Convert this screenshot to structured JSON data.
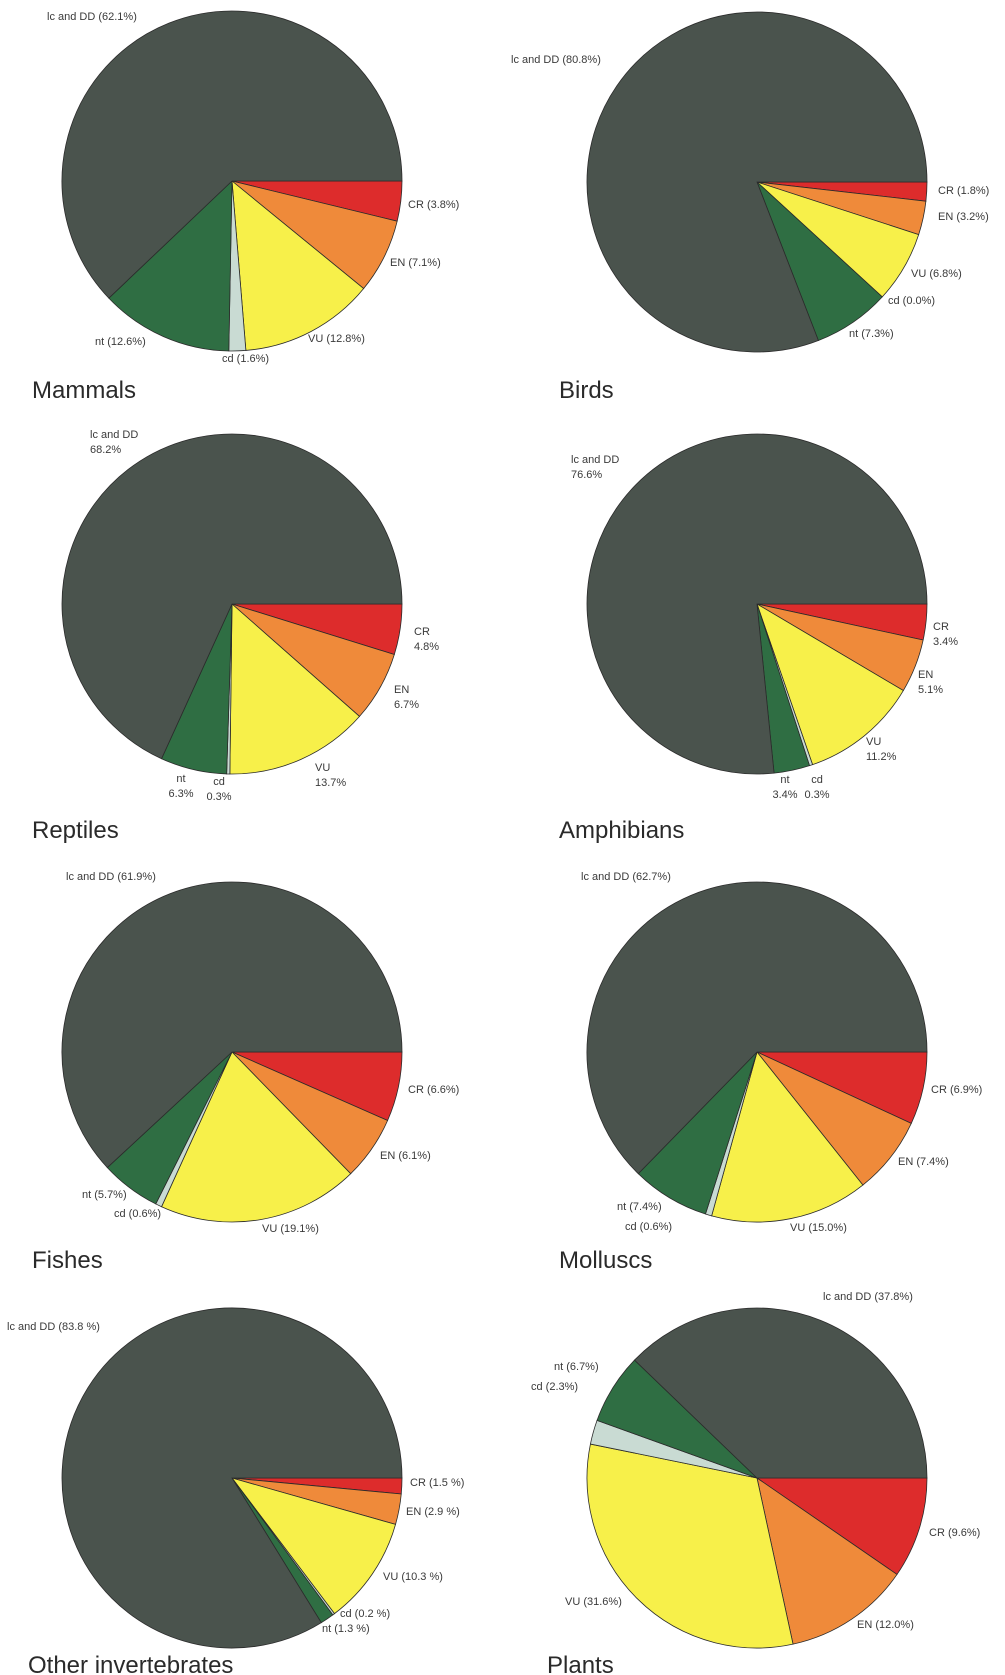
{
  "colors": {
    "lc_and_dd": "#4a534d",
    "cr": "#dd2c2c",
    "en": "#ef8a3a",
    "vu": "#f7f04a",
    "cd": "#c9dbd3",
    "nt": "#2f6e43"
  },
  "chart_data": [
    {
      "type": "pie",
      "title": "Mammals",
      "slices": [
        {
          "category": "CR",
          "value": 3.8,
          "label": "CR (3.8%)"
        },
        {
          "category": "EN",
          "value": 7.1,
          "label": "EN (7.1%)"
        },
        {
          "category": "VU",
          "value": 12.8,
          "label": "VU (12.8%)"
        },
        {
          "category": "cd",
          "value": 1.6,
          "label": "cd (1.6%)"
        },
        {
          "category": "nt",
          "value": 12.6,
          "label": "nt (12.6%)"
        },
        {
          "category": "lc and DD",
          "value": 62.1,
          "label": "lc and DD (62.1%)"
        }
      ]
    },
    {
      "type": "pie",
      "title": "Birds",
      "slices": [
        {
          "category": "CR",
          "value": 1.8,
          "label": "CR (1.8%)"
        },
        {
          "category": "EN",
          "value": 3.2,
          "label": "EN (3.2%)"
        },
        {
          "category": "VU",
          "value": 6.8,
          "label": "VU (6.8%)"
        },
        {
          "category": "cd",
          "value": 0.0,
          "label": "cd (0.0%)"
        },
        {
          "category": "nt",
          "value": 7.3,
          "label": "nt (7.3%)"
        },
        {
          "category": "lc and DD",
          "value": 80.8,
          "label": "lc and DD (80.8%)"
        }
      ]
    },
    {
      "type": "pie",
      "title": "Reptiles",
      "slices": [
        {
          "category": "CR",
          "value": 4.8,
          "label": "CR\n4.8%"
        },
        {
          "category": "EN",
          "value": 6.7,
          "label": "EN\n6.7%"
        },
        {
          "category": "VU",
          "value": 13.7,
          "label": "VU\n13.7%"
        },
        {
          "category": "cd",
          "value": 0.3,
          "label": "cd\n0.3%"
        },
        {
          "category": "nt",
          "value": 6.3,
          "label": "nt\n6.3%"
        },
        {
          "category": "lc and DD",
          "value": 68.2,
          "label": "lc and DD\n68.2%"
        }
      ]
    },
    {
      "type": "pie",
      "title": "Amphibians",
      "slices": [
        {
          "category": "CR",
          "value": 3.4,
          "label": "CR\n3.4%"
        },
        {
          "category": "EN",
          "value": 5.1,
          "label": "EN\n5.1%"
        },
        {
          "category": "VU",
          "value": 11.2,
          "label": "VU\n11.2%"
        },
        {
          "category": "cd",
          "value": 0.3,
          "label": "cd\n0.3%"
        },
        {
          "category": "nt",
          "value": 3.4,
          "label": "nt\n3.4%"
        },
        {
          "category": "lc and DD",
          "value": 76.6,
          "label": "lc and DD\n76.6%"
        }
      ]
    },
    {
      "type": "pie",
      "title": "Fishes",
      "slices": [
        {
          "category": "CR",
          "value": 6.6,
          "label": "CR (6.6%)"
        },
        {
          "category": "EN",
          "value": 6.1,
          "label": "EN (6.1%)"
        },
        {
          "category": "VU",
          "value": 19.1,
          "label": "VU (19.1%)"
        },
        {
          "category": "cd",
          "value": 0.6,
          "label": "cd (0.6%)"
        },
        {
          "category": "nt",
          "value": 5.7,
          "label": "nt (5.7%)"
        },
        {
          "category": "lc and DD",
          "value": 61.9,
          "label": "lc and DD (61.9%)"
        }
      ]
    },
    {
      "type": "pie",
      "title": "Molluscs",
      "slices": [
        {
          "category": "CR",
          "value": 6.9,
          "label": "CR (6.9%)"
        },
        {
          "category": "EN",
          "value": 7.4,
          "label": "EN (7.4%)"
        },
        {
          "category": "VU",
          "value": 15.0,
          "label": "VU (15.0%)"
        },
        {
          "category": "cd",
          "value": 0.6,
          "label": "cd (0.6%)"
        },
        {
          "category": "nt",
          "value": 7.4,
          "label": "nt (7.4%)"
        },
        {
          "category": "lc and DD",
          "value": 62.7,
          "label": "lc and DD (62.7%)"
        }
      ]
    },
    {
      "type": "pie",
      "title": "Other invertebrates",
      "slices": [
        {
          "category": "CR",
          "value": 1.5,
          "label": "CR (1.5 %)"
        },
        {
          "category": "EN",
          "value": 2.9,
          "label": "EN (2.9 %)"
        },
        {
          "category": "VU",
          "value": 10.3,
          "label": "VU (10.3 %)"
        },
        {
          "category": "cd",
          "value": 0.2,
          "label": "cd (0.2 %)"
        },
        {
          "category": "nt",
          "value": 1.3,
          "label": "nt (1.3 %)"
        },
        {
          "category": "lc and DD",
          "value": 83.8,
          "label": "lc and DD (83.8 %)"
        }
      ]
    },
    {
      "type": "pie",
      "title": "Plants",
      "slices": [
        {
          "category": "CR",
          "value": 9.6,
          "label": "CR (9.6%)"
        },
        {
          "category": "EN",
          "value": 12.0,
          "label": "EN (12.0%)"
        },
        {
          "category": "VU",
          "value": 31.6,
          "label": "VU (31.6%)"
        },
        {
          "category": "cd",
          "value": 2.3,
          "label": "cd (2.3%)"
        },
        {
          "category": "nt",
          "value": 6.7,
          "label": "nt (6.7%)"
        },
        {
          "category": "lc and DD",
          "value": 37.8,
          "label": "lc and DD (37.8%)"
        }
      ]
    }
  ]
}
